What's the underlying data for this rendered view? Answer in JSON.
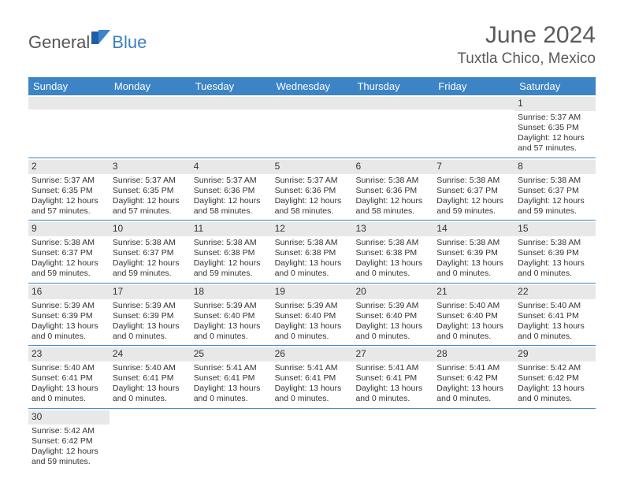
{
  "brand": {
    "part1": "General",
    "part2": "Blue"
  },
  "title": "June 2024",
  "location": "Tuxtla Chico, Mexico",
  "colors": {
    "header_bar": "#3c84c6",
    "band": "#e8e8e8",
    "text": "#333333",
    "brand_gray": "#565656",
    "brand_blue": "#3b7fc4"
  },
  "dayHeaders": [
    "Sunday",
    "Monday",
    "Tuesday",
    "Wednesday",
    "Thursday",
    "Friday",
    "Saturday"
  ],
  "weeks": [
    [
      null,
      null,
      null,
      null,
      null,
      null,
      {
        "n": "1",
        "sr": "Sunrise: 5:37 AM",
        "ss": "Sunset: 6:35 PM",
        "dl": "Daylight: 12 hours and 57 minutes."
      }
    ],
    [
      {
        "n": "2",
        "sr": "Sunrise: 5:37 AM",
        "ss": "Sunset: 6:35 PM",
        "dl": "Daylight: 12 hours and 57 minutes."
      },
      {
        "n": "3",
        "sr": "Sunrise: 5:37 AM",
        "ss": "Sunset: 6:35 PM",
        "dl": "Daylight: 12 hours and 57 minutes."
      },
      {
        "n": "4",
        "sr": "Sunrise: 5:37 AM",
        "ss": "Sunset: 6:36 PM",
        "dl": "Daylight: 12 hours and 58 minutes."
      },
      {
        "n": "5",
        "sr": "Sunrise: 5:37 AM",
        "ss": "Sunset: 6:36 PM",
        "dl": "Daylight: 12 hours and 58 minutes."
      },
      {
        "n": "6",
        "sr": "Sunrise: 5:38 AM",
        "ss": "Sunset: 6:36 PM",
        "dl": "Daylight: 12 hours and 58 minutes."
      },
      {
        "n": "7",
        "sr": "Sunrise: 5:38 AM",
        "ss": "Sunset: 6:37 PM",
        "dl": "Daylight: 12 hours and 59 minutes."
      },
      {
        "n": "8",
        "sr": "Sunrise: 5:38 AM",
        "ss": "Sunset: 6:37 PM",
        "dl": "Daylight: 12 hours and 59 minutes."
      }
    ],
    [
      {
        "n": "9",
        "sr": "Sunrise: 5:38 AM",
        "ss": "Sunset: 6:37 PM",
        "dl": "Daylight: 12 hours and 59 minutes."
      },
      {
        "n": "10",
        "sr": "Sunrise: 5:38 AM",
        "ss": "Sunset: 6:37 PM",
        "dl": "Daylight: 12 hours and 59 minutes."
      },
      {
        "n": "11",
        "sr": "Sunrise: 5:38 AM",
        "ss": "Sunset: 6:38 PM",
        "dl": "Daylight: 12 hours and 59 minutes."
      },
      {
        "n": "12",
        "sr": "Sunrise: 5:38 AM",
        "ss": "Sunset: 6:38 PM",
        "dl": "Daylight: 13 hours and 0 minutes."
      },
      {
        "n": "13",
        "sr": "Sunrise: 5:38 AM",
        "ss": "Sunset: 6:38 PM",
        "dl": "Daylight: 13 hours and 0 minutes."
      },
      {
        "n": "14",
        "sr": "Sunrise: 5:38 AM",
        "ss": "Sunset: 6:39 PM",
        "dl": "Daylight: 13 hours and 0 minutes."
      },
      {
        "n": "15",
        "sr": "Sunrise: 5:38 AM",
        "ss": "Sunset: 6:39 PM",
        "dl": "Daylight: 13 hours and 0 minutes."
      }
    ],
    [
      {
        "n": "16",
        "sr": "Sunrise: 5:39 AM",
        "ss": "Sunset: 6:39 PM",
        "dl": "Daylight: 13 hours and 0 minutes."
      },
      {
        "n": "17",
        "sr": "Sunrise: 5:39 AM",
        "ss": "Sunset: 6:39 PM",
        "dl": "Daylight: 13 hours and 0 minutes."
      },
      {
        "n": "18",
        "sr": "Sunrise: 5:39 AM",
        "ss": "Sunset: 6:40 PM",
        "dl": "Daylight: 13 hours and 0 minutes."
      },
      {
        "n": "19",
        "sr": "Sunrise: 5:39 AM",
        "ss": "Sunset: 6:40 PM",
        "dl": "Daylight: 13 hours and 0 minutes."
      },
      {
        "n": "20",
        "sr": "Sunrise: 5:39 AM",
        "ss": "Sunset: 6:40 PM",
        "dl": "Daylight: 13 hours and 0 minutes."
      },
      {
        "n": "21",
        "sr": "Sunrise: 5:40 AM",
        "ss": "Sunset: 6:40 PM",
        "dl": "Daylight: 13 hours and 0 minutes."
      },
      {
        "n": "22",
        "sr": "Sunrise: 5:40 AM",
        "ss": "Sunset: 6:41 PM",
        "dl": "Daylight: 13 hours and 0 minutes."
      }
    ],
    [
      {
        "n": "23",
        "sr": "Sunrise: 5:40 AM",
        "ss": "Sunset: 6:41 PM",
        "dl": "Daylight: 13 hours and 0 minutes."
      },
      {
        "n": "24",
        "sr": "Sunrise: 5:40 AM",
        "ss": "Sunset: 6:41 PM",
        "dl": "Daylight: 13 hours and 0 minutes."
      },
      {
        "n": "25",
        "sr": "Sunrise: 5:41 AM",
        "ss": "Sunset: 6:41 PM",
        "dl": "Daylight: 13 hours and 0 minutes."
      },
      {
        "n": "26",
        "sr": "Sunrise: 5:41 AM",
        "ss": "Sunset: 6:41 PM",
        "dl": "Daylight: 13 hours and 0 minutes."
      },
      {
        "n": "27",
        "sr": "Sunrise: 5:41 AM",
        "ss": "Sunset: 6:41 PM",
        "dl": "Daylight: 13 hours and 0 minutes."
      },
      {
        "n": "28",
        "sr": "Sunrise: 5:41 AM",
        "ss": "Sunset: 6:42 PM",
        "dl": "Daylight: 13 hours and 0 minutes."
      },
      {
        "n": "29",
        "sr": "Sunrise: 5:42 AM",
        "ss": "Sunset: 6:42 PM",
        "dl": "Daylight: 13 hours and 0 minutes."
      }
    ],
    [
      {
        "n": "30",
        "sr": "Sunrise: 5:42 AM",
        "ss": "Sunset: 6:42 PM",
        "dl": "Daylight: 12 hours and 59 minutes."
      },
      null,
      null,
      null,
      null,
      null,
      null
    ]
  ]
}
